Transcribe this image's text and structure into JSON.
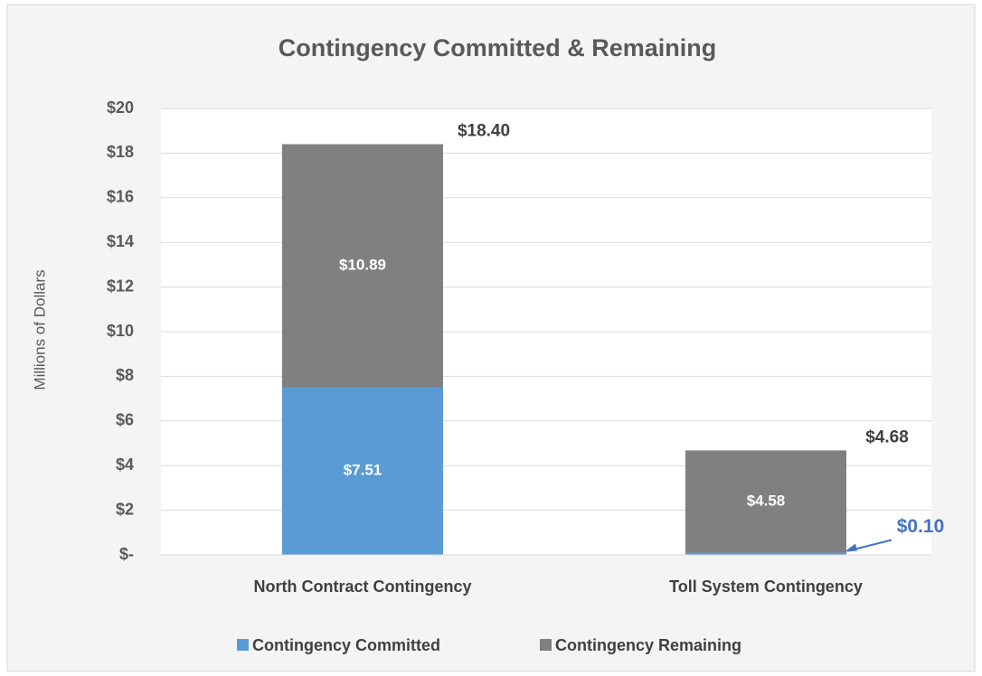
{
  "chart_data": {
    "type": "stacked_bar",
    "title": "Contingency Committed & Remaining",
    "y_label": "Millions of Dollars",
    "categories": [
      "North Contract Contingency",
      "Toll System Contingency"
    ],
    "series": [
      {
        "name": "Contingency Committed",
        "color": "#5b9bd5",
        "values": [
          7.51,
          0.1
        ],
        "value_labels": [
          "$7.51",
          "$0.10"
        ]
      },
      {
        "name": "Contingency Remaining",
        "color": "#808080",
        "values": [
          10.89,
          4.58
        ],
        "value_labels": [
          "$10.89",
          "$4.58"
        ]
      }
    ],
    "totals": [
      18.4,
      4.68
    ],
    "total_labels": [
      "$18.40",
      "$4.68"
    ],
    "ylim": [
      0,
      20
    ],
    "yticks": [
      {
        "value": 0,
        "label": "$-"
      },
      {
        "value": 2,
        "label": "$2"
      },
      {
        "value": 4,
        "label": "$4"
      },
      {
        "value": 6,
        "label": "$6"
      },
      {
        "value": 8,
        "label": "$8"
      },
      {
        "value": 10,
        "label": "$10"
      },
      {
        "value": 12,
        "label": "$12"
      },
      {
        "value": 14,
        "label": "$14"
      },
      {
        "value": 16,
        "label": "$16"
      },
      {
        "value": 18,
        "label": "$18"
      },
      {
        "value": 20,
        "label": "$20"
      }
    ],
    "grid": true,
    "legend": "bottom"
  }
}
